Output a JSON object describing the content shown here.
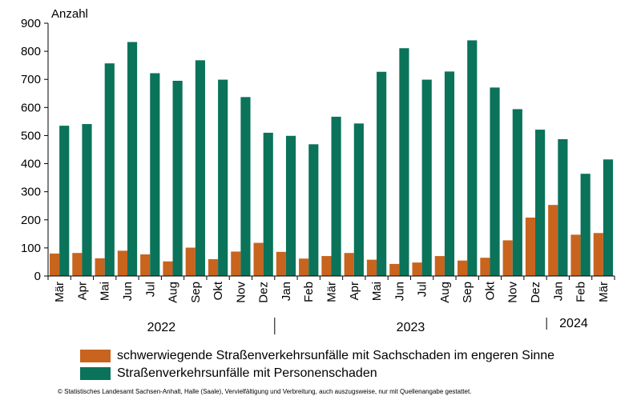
{
  "chart_data": {
    "type": "bar",
    "ylabel": "Anzahl",
    "ylim": [
      0,
      900
    ],
    "yticks": [
      0,
      100,
      200,
      300,
      400,
      500,
      600,
      700,
      800,
      900
    ],
    "grid": false,
    "legend_placement": "bottom",
    "categories": [
      "Mär",
      "Apr",
      "Mai",
      "Jun",
      "Jul",
      "Aug",
      "Sep",
      "Okt",
      "Nov",
      "Dez",
      "Jan",
      "Feb",
      "Mär",
      "Apr",
      "Mai",
      "Jun",
      "Jul",
      "Aug",
      "Sep",
      "Okt",
      "Nov",
      "Dez",
      "Jan",
      "Feb",
      "Mär"
    ],
    "year_groups": [
      {
        "label": "2022",
        "start": 0,
        "end": 9
      },
      {
        "label": "2023",
        "start": 10,
        "end": 21
      },
      {
        "label": "2024",
        "start": 22,
        "end": 24
      }
    ],
    "series": [
      {
        "name": "schwerwiegende Straßenverkehrsunfälle mit Sachschaden im engeren Sinne",
        "color": "#c8641e",
        "values": [
          80,
          82,
          63,
          90,
          77,
          52,
          101,
          60,
          87,
          118,
          86,
          62,
          71,
          82,
          58,
          43,
          48,
          71,
          55,
          65,
          127,
          208,
          253,
          147,
          153
        ]
      },
      {
        "name": "Straßenverkehrsunfälle mit Personenschaden",
        "color": "#0a735a",
        "values": [
          535,
          541,
          757,
          833,
          722,
          695,
          768,
          699,
          637,
          510,
          499,
          469,
          567,
          543,
          727,
          811,
          699,
          728,
          839,
          671,
          594,
          521,
          487,
          364,
          415
        ]
      }
    ]
  },
  "footer": "© Statistisches Landesamt Sachsen-Anhalt, Halle (Saale), Vervielfältigung und Verbreitung, auch auszugsweise, nur mit Quellenangabe gestattet."
}
